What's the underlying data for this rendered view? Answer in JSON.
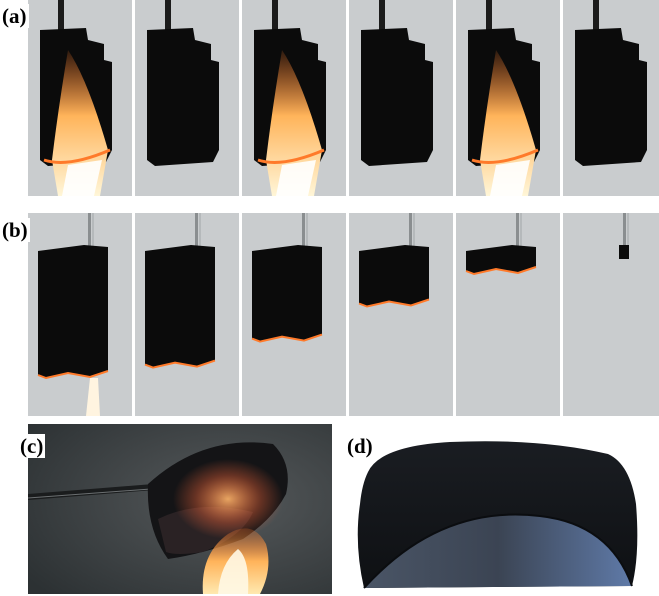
{
  "panels": {
    "a": {
      "label": "(a)"
    },
    "b": {
      "label": "(b)"
    },
    "c": {
      "label": "(c)"
    },
    "d": {
      "label": "(d)"
    }
  },
  "row_a": {
    "frames": [
      {
        "flame": true
      },
      {
        "flame": false
      },
      {
        "flame": true
      },
      {
        "flame": false
      },
      {
        "flame": true
      },
      {
        "flame": false
      }
    ]
  },
  "row_b": {
    "frames": [
      {
        "burn_fraction": 0.0,
        "flame": true
      },
      {
        "burn_fraction": 0.08,
        "flame": false
      },
      {
        "burn_fraction": 0.28,
        "flame": false
      },
      {
        "burn_fraction": 0.55,
        "flame": false
      },
      {
        "burn_fraction": 0.8,
        "flame": false
      },
      {
        "burn_fraction": 0.98,
        "flame": false
      }
    ]
  },
  "colors": {
    "background_gray": "#c9ccce",
    "sample_black": "#0b0b0b",
    "ember_orange": "#ff7a2a",
    "flame_core": "#fff6d8"
  }
}
